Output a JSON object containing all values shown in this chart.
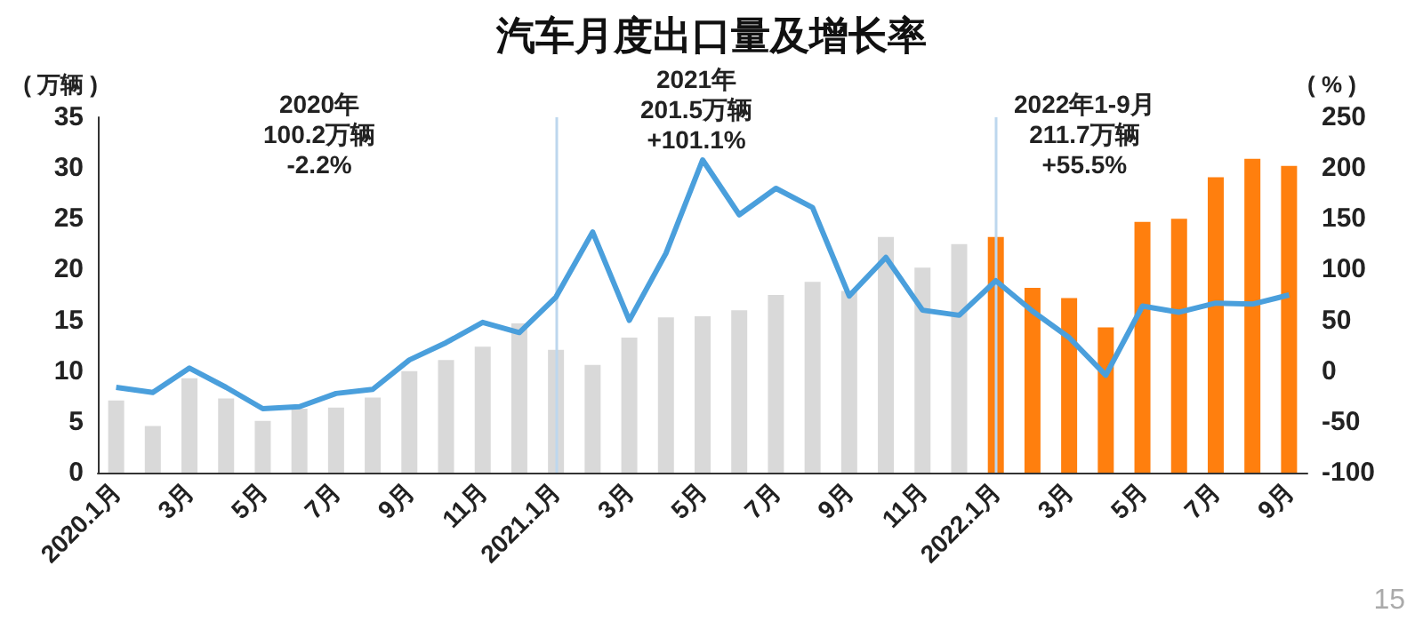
{
  "chart_data": {
    "type": "bar",
    "title": "汽车月度出口量及增长率",
    "ylabel": "( 万辆 )",
    "y2label": "( % )",
    "categories": [
      "2020.1月",
      null,
      "3月",
      null,
      "5月",
      null,
      "7月",
      null,
      "9月",
      null,
      "11月",
      null,
      "2021.1月",
      null,
      "3月",
      null,
      "5月",
      null,
      "7月",
      null,
      "9月",
      null,
      "11月",
      null,
      "2022.1月",
      null,
      "3月",
      null,
      "5月",
      null,
      "7月",
      null,
      "9月"
    ],
    "series": [
      {
        "colors": [
          "#d9d9d9",
          "#d9d9d9",
          "#d9d9d9",
          "#d9d9d9",
          "#d9d9d9",
          "#d9d9d9",
          "#d9d9d9",
          "#d9d9d9",
          "#d9d9d9",
          "#d9d9d9",
          "#d9d9d9",
          "#d9d9d9",
          "#d9d9d9",
          "#d9d9d9",
          "#d9d9d9",
          "#d9d9d9",
          "#d9d9d9",
          "#d9d9d9",
          "#d9d9d9",
          "#d9d9d9",
          "#d9d9d9",
          "#d9d9d9",
          "#d9d9d9",
          "#d9d9d9",
          "#ff7f0e",
          "#ff7f0e",
          "#ff7f0e",
          "#ff7f0e",
          "#ff7f0e",
          "#ff7f0e",
          "#ff7f0e",
          "#ff7f0e",
          "#ff7f0e"
        ],
        "values": [
          7.1,
          4.6,
          9.3,
          7.3,
          5.1,
          6.3,
          6.4,
          7.4,
          10.0,
          11.1,
          12.4,
          14.7,
          12.1,
          10.6,
          13.3,
          15.3,
          15.4,
          16.0,
          17.5,
          18.8,
          17.9,
          23.2,
          20.2,
          22.5,
          23.2,
          18.2,
          17.2,
          14.3,
          24.7,
          25.0,
          29.1,
          30.9,
          30.2
        ]
      },
      {
        "type": "line",
        "axis": "y2",
        "color": "#4a9fdc",
        "values": [
          -16,
          -21,
          3,
          -16,
          -37,
          -35,
          -22,
          -18,
          11,
          28,
          48,
          38,
          73,
          137,
          50,
          116,
          208,
          154,
          180,
          161,
          74,
          112,
          60,
          55,
          89,
          59,
          33,
          -4,
          64,
          58,
          67,
          66,
          75
        ]
      }
    ],
    "ylim": [
      0,
      35
    ],
    "yticks": [
      0,
      5,
      10,
      15,
      20,
      25,
      30,
      35
    ],
    "y2lim": [
      -100,
      250
    ],
    "y2ticks": [
      -100,
      -50,
      0,
      50,
      100,
      150,
      200,
      250
    ],
    "grid": false,
    "marker": "none",
    "line_style": "solid",
    "ref_lines": [
      {
        "axis": "x",
        "value": "2021.1月",
        "label": null,
        "color": "#bdd7ee"
      },
      {
        "axis": "x",
        "value": "2022.1月",
        "label": null,
        "color": "#bdd7ee"
      }
    ],
    "annotations": [
      "2020年\n100.2万辆\n-2.2%",
      "2021年\n201.5万辆\n+101.1%",
      "2022年1-9月\n211.7万辆\n+55.5%",
      "15"
    ]
  }
}
